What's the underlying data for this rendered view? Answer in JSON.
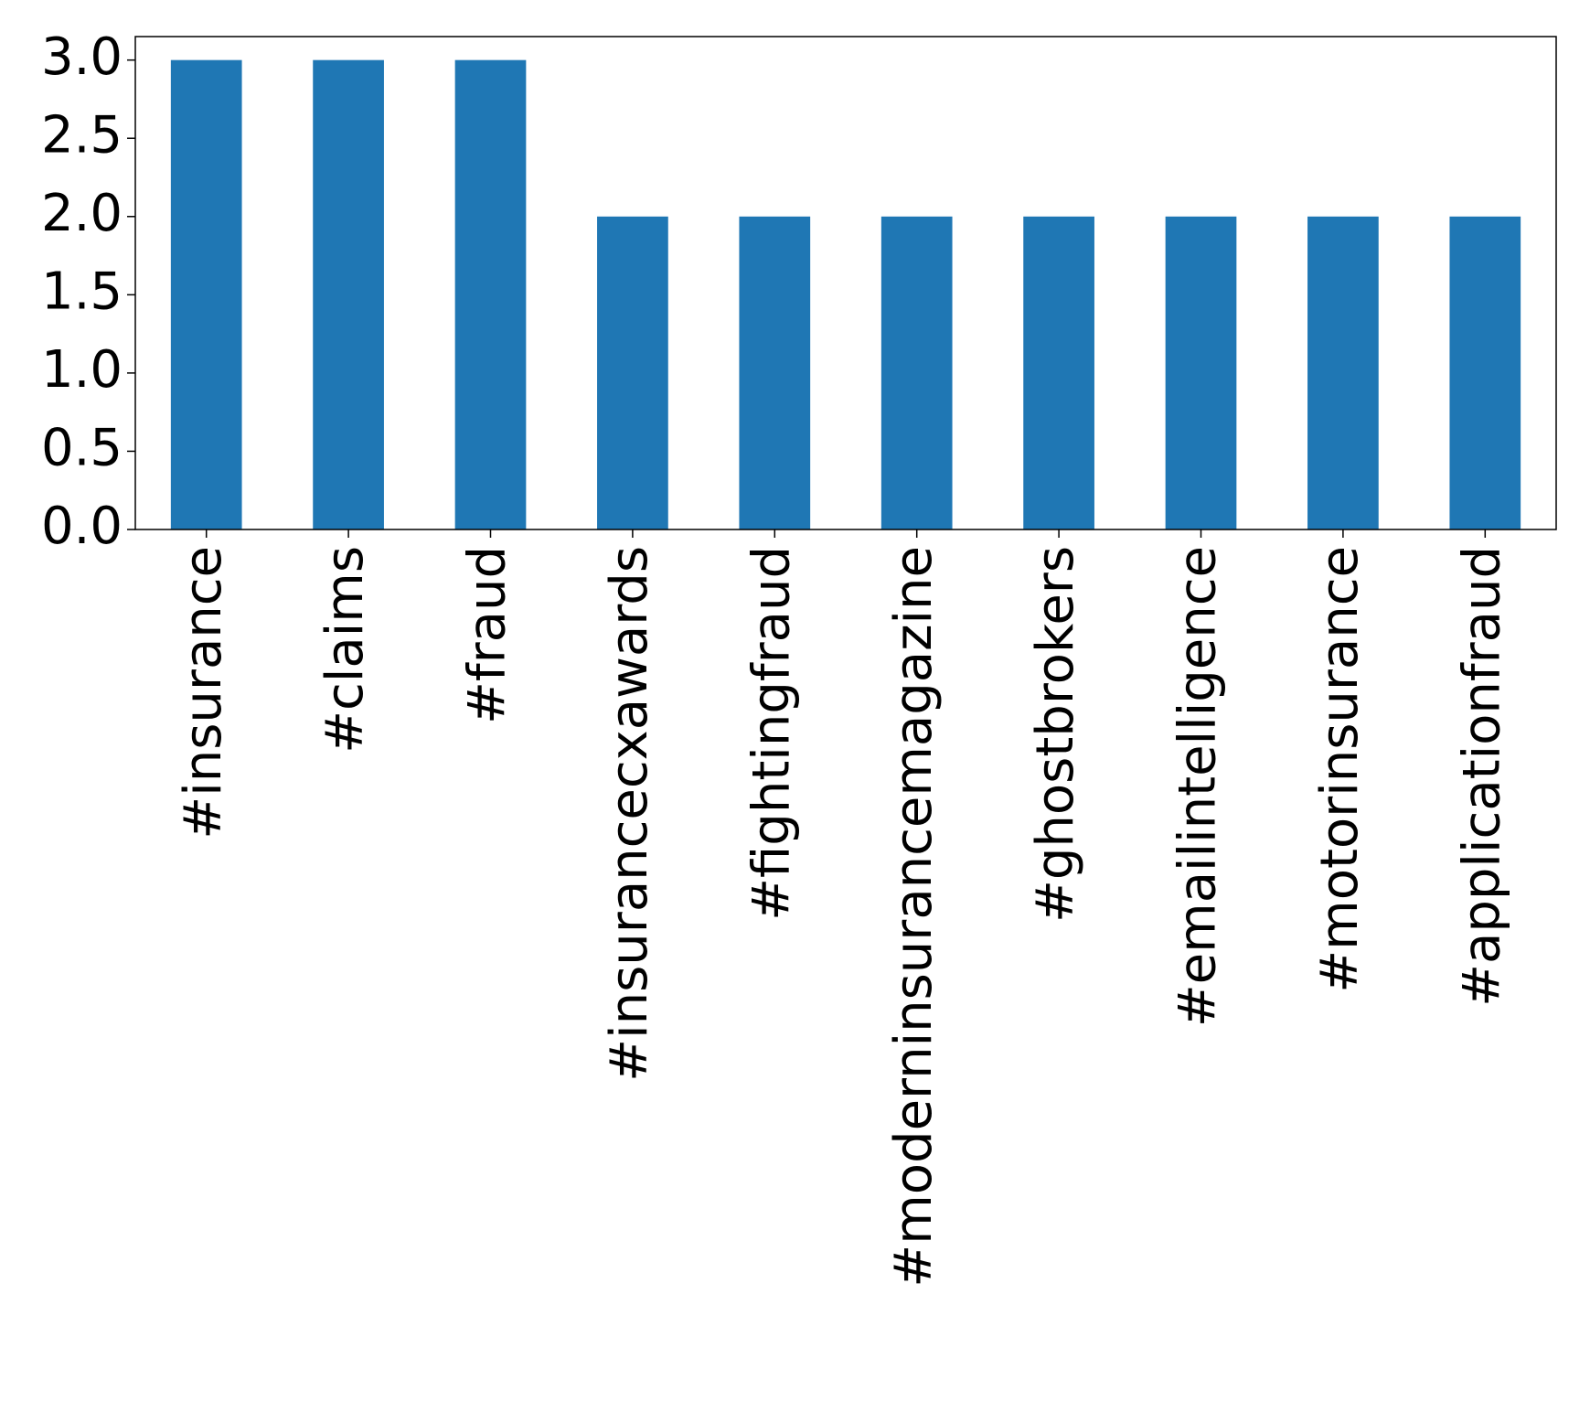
{
  "chart_data": {
    "type": "bar",
    "categories": [
      "#insurance",
      "#claims",
      "#fraud",
      "#insurancecxawards",
      "#fightingfraud",
      "#moderninsurancemagazine",
      "#ghostbrokers",
      "#emailintelligence",
      "#motorinsurance",
      "#applicationfraud"
    ],
    "values": [
      3,
      3,
      3,
      2,
      2,
      2,
      2,
      2,
      2,
      2
    ],
    "ylim": [
      0,
      3.15
    ],
    "yticks": [
      "0.0",
      "0.5",
      "1.0",
      "1.5",
      "2.0",
      "2.5",
      "3.0"
    ],
    "title": "",
    "xlabel": "",
    "ylabel": "",
    "grid": false,
    "bar_color": "#1f77b4"
  }
}
